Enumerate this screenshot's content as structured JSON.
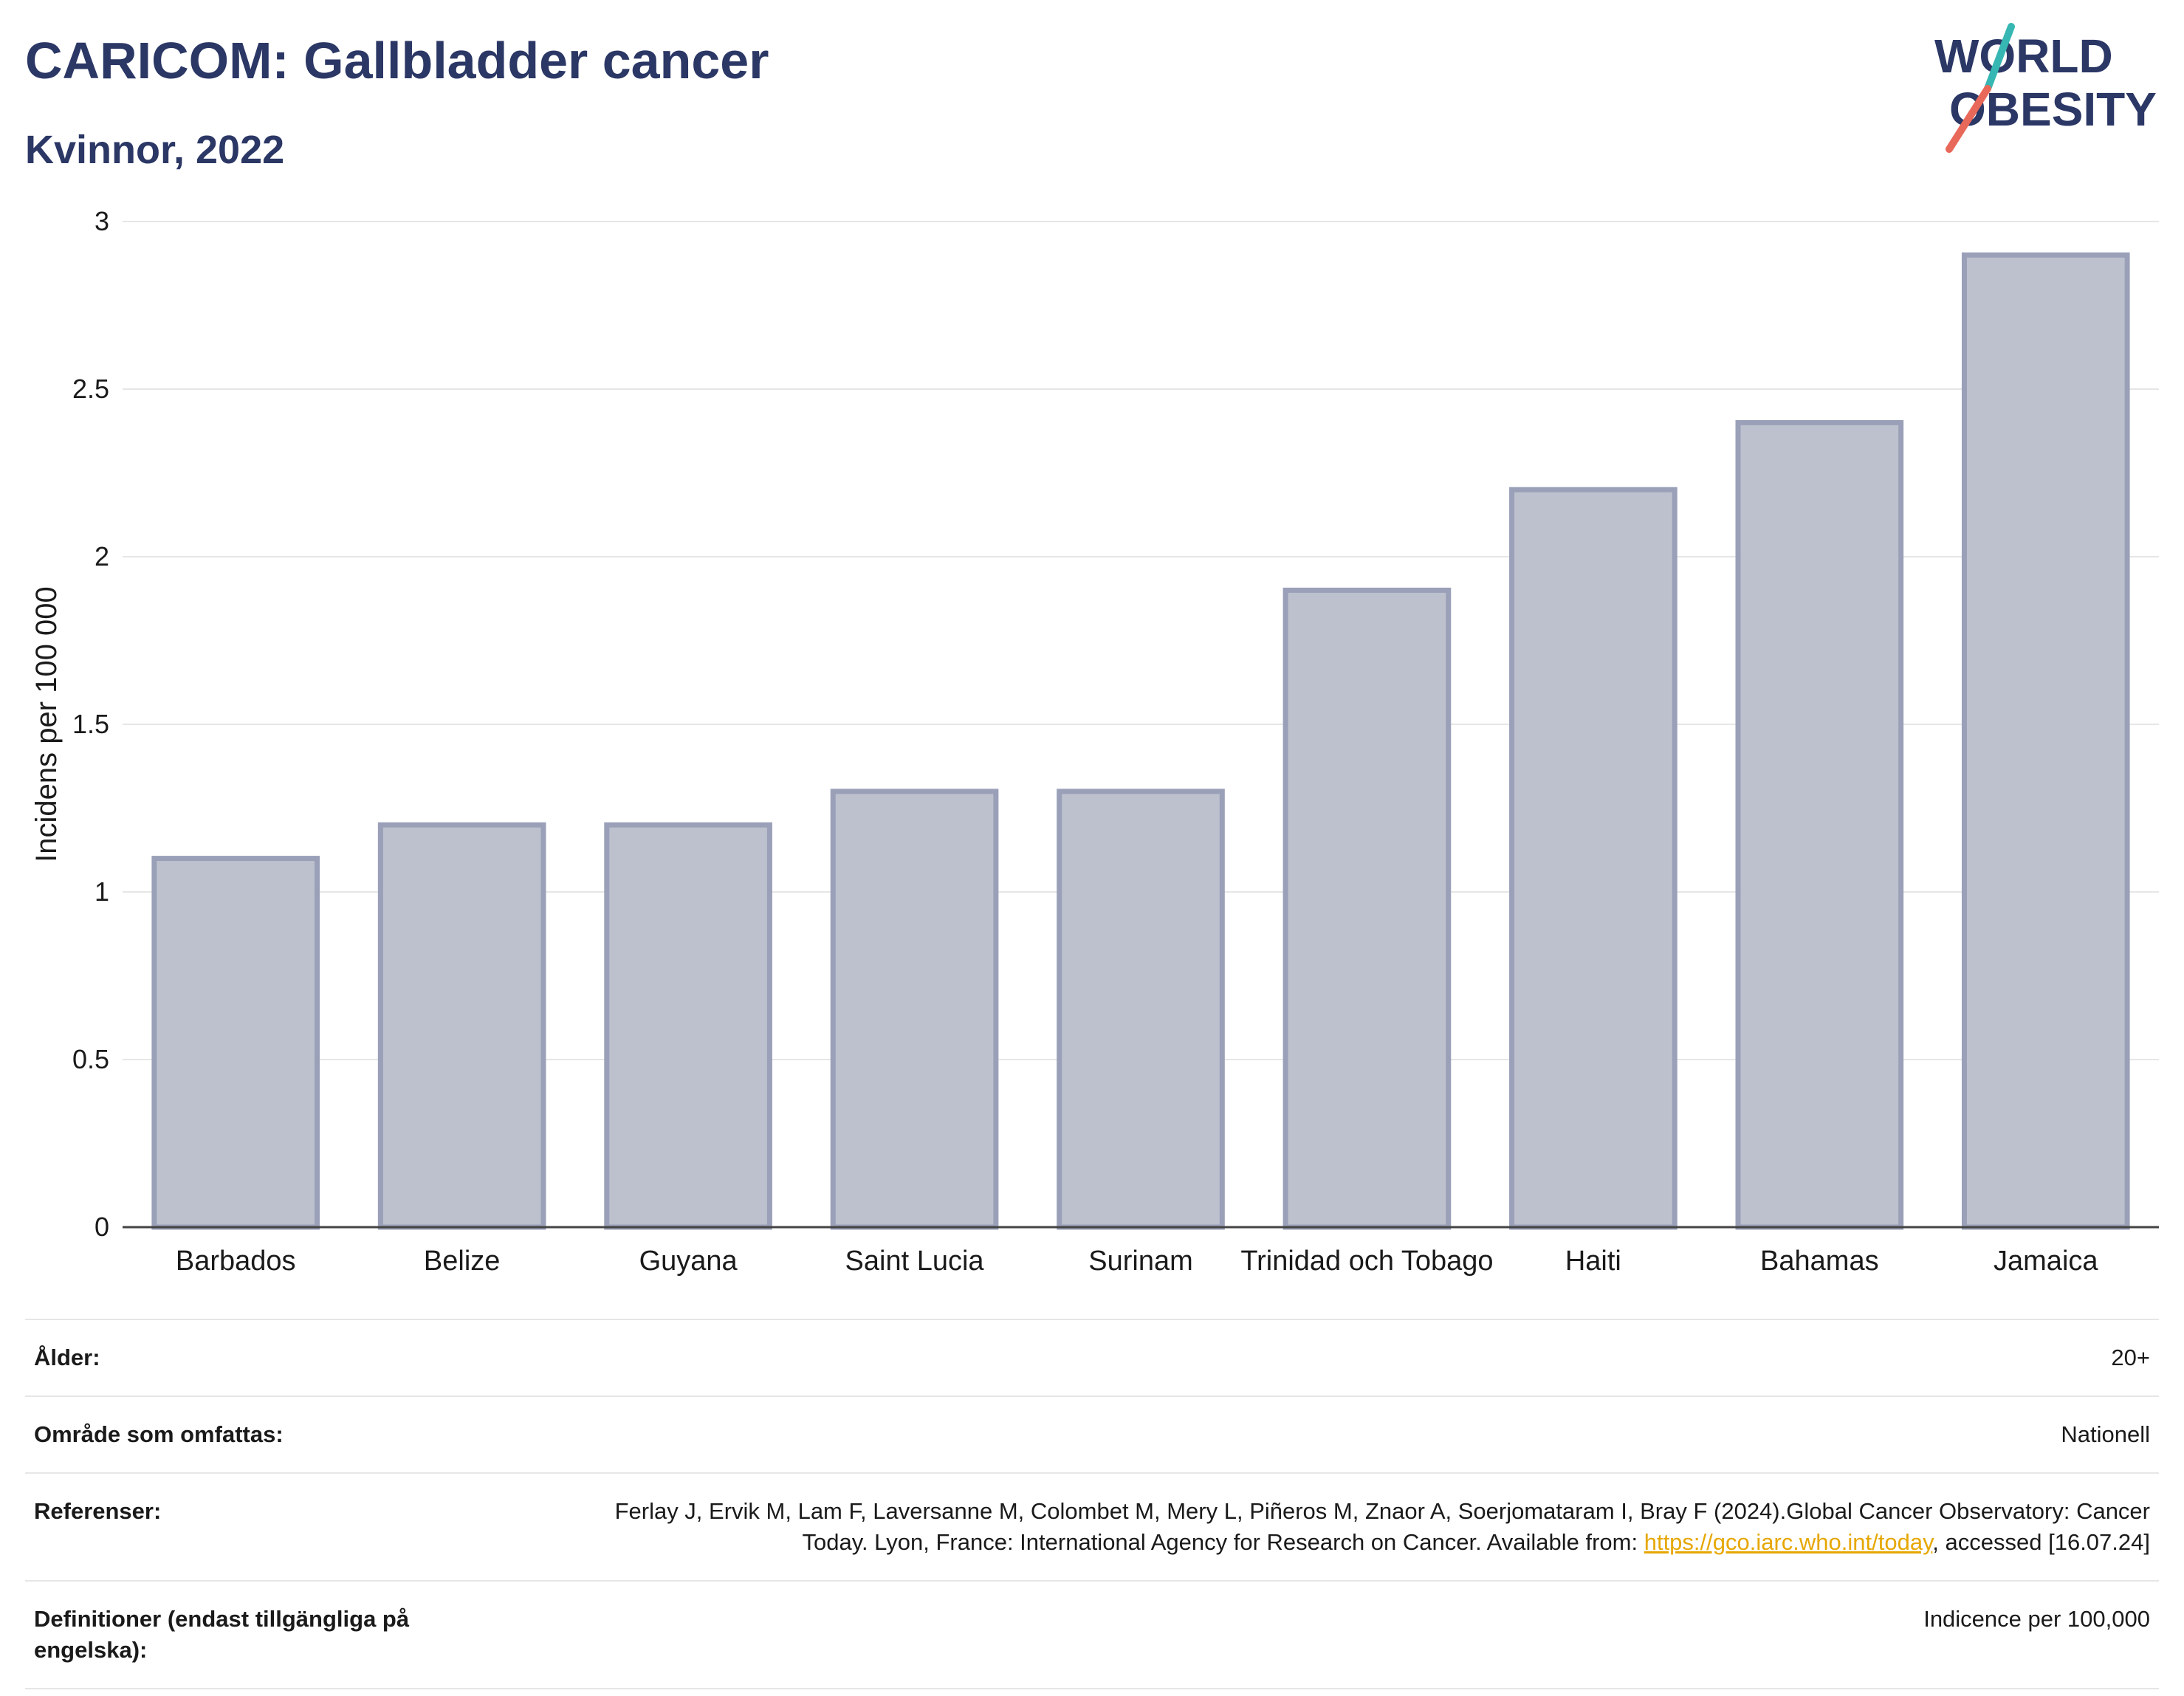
{
  "header": {
    "title": "CARICOM: Gallbladder cancer",
    "subtitle": "Kvinnor, 2022"
  },
  "logo": {
    "line1": "WORLD",
    "line2": "OBESITY",
    "accent_red": "#e8685a",
    "accent_teal": "#37b7b3",
    "text_color": "#2b3765"
  },
  "chart_data": {
    "type": "bar",
    "categories": [
      "Barbados",
      "Belize",
      "Guyana",
      "Saint Lucia",
      "Surinam",
      "Trinidad och Tobago",
      "Haiti",
      "Bahamas",
      "Jamaica"
    ],
    "values": [
      1.1,
      1.2,
      1.2,
      1.3,
      1.3,
      1.9,
      2.2,
      2.4,
      2.9
    ],
    "title": "",
    "xlabel": "",
    "ylabel": "Incidens per 100 000",
    "ylim": [
      0,
      3
    ],
    "yticks": [
      0,
      0.5,
      1,
      1.5,
      2,
      2.5,
      3
    ],
    "ytick_labels": [
      "0",
      "0.5",
      "1",
      "1.5",
      "2",
      "2.5",
      "3"
    ],
    "grid": true,
    "bar_fill": "#bdc1ce",
    "bar_stroke": "#9aa0b8"
  },
  "meta": {
    "age_label": "Ålder:",
    "age_value": "20+",
    "area_label": "Område som omfattas:",
    "area_value": "Nationell",
    "ref_label": "Referenser:",
    "ref_text_1": "Ferlay J, Ervik M, Lam F, Laversanne M, Colombet M, Mery L, Piñeros M, Znaor A, Soerjomataram I, Bray F (2024).Global Cancer Observatory: Cancer Today. Lyon, France: International Agency for Research on Cancer. Available from: ",
    "ref_link": "https://gco.iarc.who.int/today",
    "ref_text_2": ", accessed [16.07.24]",
    "def_label": "Definitioner (endast tillgängliga på engelska):",
    "def_value": "Indicence per 100,000"
  }
}
